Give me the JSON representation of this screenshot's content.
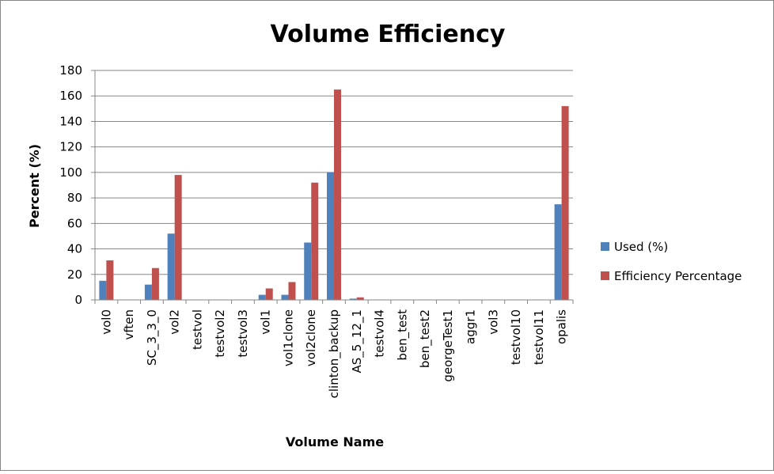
{
  "chart_data": {
    "type": "bar",
    "title": "Volume Efficiency",
    "xlabel": "Volume Name",
    "ylabel": "Percent (%)",
    "ylim": [
      0,
      180
    ],
    "yticks": [
      0,
      20,
      40,
      60,
      80,
      100,
      120,
      140,
      160,
      180
    ],
    "grid": true,
    "legend_position": "right",
    "categories": [
      "vol0",
      "vften",
      "SC_3_3_0",
      "vol2",
      "testvol",
      "testvol2",
      "testvol3",
      "vol1",
      "vol1clone",
      "vol2clone",
      "clinton_backup",
      "AS_5_12_1",
      "testvol4",
      "ben_test",
      "ben_test2",
      "georgeTest1",
      "aggr1",
      "vol3",
      "testvol10",
      "testvol11",
      "opalis"
    ],
    "series": [
      {
        "name": "Used (%)",
        "color": "#4F81BD",
        "values": [
          15,
          0,
          12,
          52,
          0,
          0,
          0,
          4,
          4,
          45,
          100,
          1,
          0,
          0,
          0,
          0,
          0,
          0,
          0,
          0,
          75
        ]
      },
      {
        "name": "Efficiency Percentage",
        "color": "#C0504D",
        "values": [
          31,
          0,
          25,
          98,
          0,
          0,
          0,
          9,
          14,
          92,
          165,
          2,
          0,
          0,
          0,
          0,
          0,
          0,
          0,
          0,
          152
        ]
      }
    ]
  }
}
